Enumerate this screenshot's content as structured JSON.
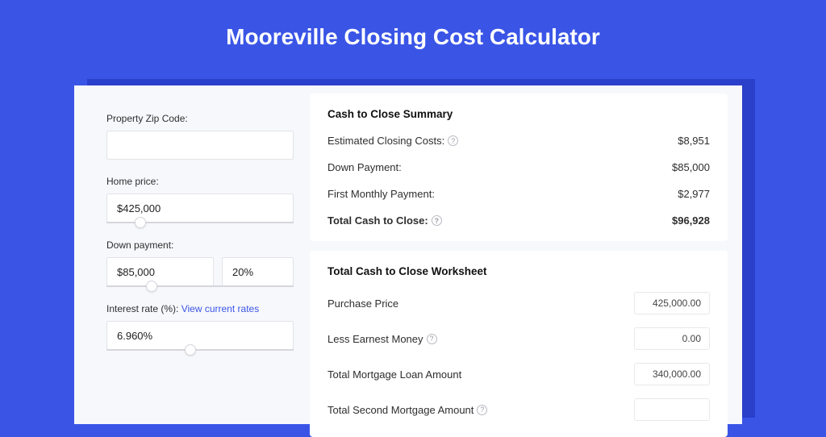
{
  "page": {
    "title": "Mooreville Closing Cost Calculator",
    "background_color": "#3a55e6",
    "shadow_color": "#2a3fca",
    "card_bg": "#f7f8fc",
    "panel_bg": "#ffffff"
  },
  "form": {
    "zip": {
      "label": "Property Zip Code:",
      "value": ""
    },
    "home_price": {
      "label": "Home price:",
      "value": "$425,000",
      "slider_pos_pct": 18
    },
    "down_payment": {
      "label": "Down payment:",
      "value": "$85,000",
      "pct": "20%",
      "slider_pos_pct": 24
    },
    "interest_rate": {
      "label": "Interest rate (%):",
      "link_text": "View current rates",
      "value": "6.960%",
      "slider_pos_pct": 45
    }
  },
  "summary": {
    "title": "Cash to Close Summary",
    "rows": [
      {
        "label": "Estimated Closing Costs:",
        "help": true,
        "value": "$8,951",
        "bold": false
      },
      {
        "label": "Down Payment:",
        "help": false,
        "value": "$85,000",
        "bold": false
      },
      {
        "label": "First Monthly Payment:",
        "help": false,
        "value": "$2,977",
        "bold": false
      },
      {
        "label": "Total Cash to Close:",
        "help": true,
        "value": "$96,928",
        "bold": true
      }
    ]
  },
  "worksheet": {
    "title": "Total Cash to Close Worksheet",
    "rows": [
      {
        "label": "Purchase Price",
        "help": false,
        "value": "425,000.00"
      },
      {
        "label": "Less Earnest Money",
        "help": true,
        "value": "0.00"
      },
      {
        "label": "Total Mortgage Loan Amount",
        "help": false,
        "value": "340,000.00"
      },
      {
        "label": "Total Second Mortgage Amount",
        "help": true,
        "value": ""
      }
    ]
  }
}
